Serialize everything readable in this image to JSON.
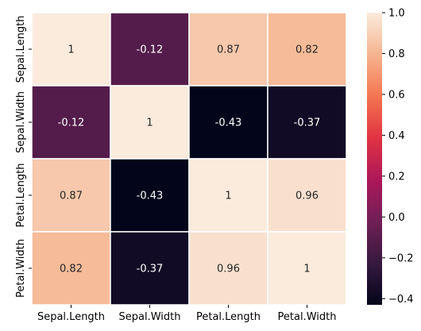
{
  "chart_data": {
    "type": "heatmap",
    "title": "",
    "xlabel": "",
    "ylabel": "",
    "x_categories": [
      "Sepal.Length",
      "Sepal.Width",
      "Petal.Length",
      "Petal.Width"
    ],
    "y_categories": [
      "Sepal.Length",
      "Sepal.Width",
      "Petal.Length",
      "Petal.Width"
    ],
    "values": [
      [
        1,
        -0.12,
        0.87,
        0.82
      ],
      [
        -0.12,
        1,
        -0.43,
        -0.37
      ],
      [
        0.87,
        -0.43,
        1,
        0.96
      ],
      [
        0.82,
        -0.37,
        0.96,
        1
      ]
    ],
    "annotations": [
      [
        "1",
        "-0.12",
        "0.87",
        "0.82"
      ],
      [
        "-0.12",
        "1",
        "-0.43",
        "-0.37"
      ],
      [
        "0.87",
        "-0.43",
        "1",
        "0.96"
      ],
      [
        "0.82",
        "-0.37",
        "0.96",
        "1"
      ]
    ],
    "colorbar": {
      "vmin": -0.43,
      "vmax": 1.0,
      "ticks": [
        1.0,
        0.8,
        0.6,
        0.4,
        0.2,
        0.0,
        -0.2,
        -0.4
      ],
      "tick_labels": [
        "1.0",
        "0.8",
        "0.6",
        "0.4",
        "0.2",
        "0.0",
        "−0.2",
        "−0.4"
      ],
      "colormap": "rocket",
      "colormap_stops": [
        "#03051a",
        "#36193e",
        "#701f57",
        "#ae1759",
        "#e13342",
        "#f37651",
        "#f6b48f",
        "#faebdd"
      ]
    },
    "grid_line_color": "#ffffff",
    "legend": "colorbar-right"
  }
}
